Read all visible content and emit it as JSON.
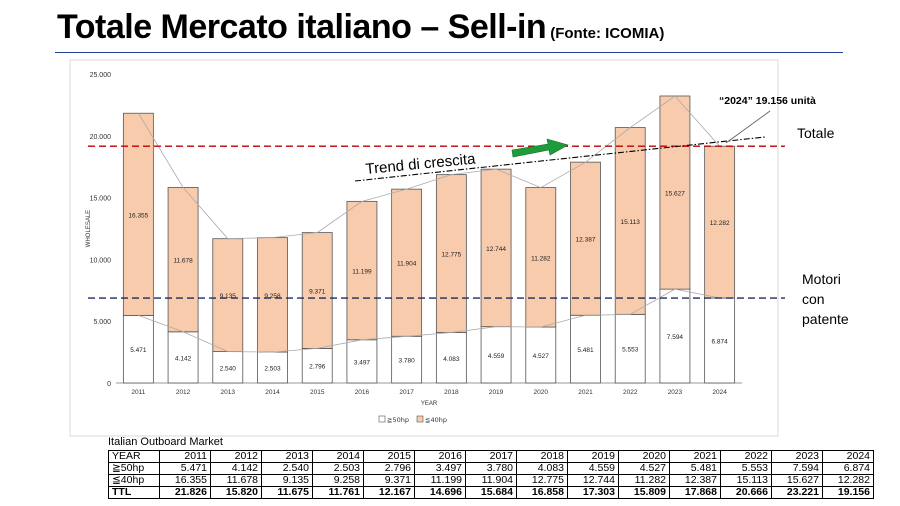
{
  "slide": {
    "title": "Totale Mercato italiano – Sell-in",
    "source": "(Fonte: ICOMIA)"
  },
  "chart_data": {
    "type": "bar",
    "stacked": true,
    "xlabel": "YEAR",
    "ylabel": "WHOLESALE",
    "ylim": [
      0,
      25000
    ],
    "yticks": [
      "0",
      "5.000",
      "10.000",
      "15.000",
      "20.000",
      "25.000"
    ],
    "ytick_values": [
      0,
      5000,
      10000,
      15000,
      20000,
      25000
    ],
    "grid": false,
    "categories": [
      "2011",
      "2012",
      "2013",
      "2014",
      "2015",
      "2016",
      "2017",
      "2018",
      "2019",
      "2020",
      "2021",
      "2022",
      "2023",
      "2024"
    ],
    "series": [
      {
        "name": "≧50hp",
        "color": "#ffffff",
        "values": [
          5471,
          4142,
          2540,
          2503,
          2796,
          3497,
          3780,
          4083,
          4559,
          4527,
          5481,
          5553,
          7594,
          6874
        ],
        "labels": [
          "5.471",
          "4.142",
          "2.540",
          "2.503",
          "2.796",
          "3.497",
          "3.780",
          "4.083",
          "4.559",
          "4.527",
          "5.481",
          "5.553",
          "7.594",
          "6.874"
        ]
      },
      {
        "name": "≦40hp",
        "color": "#f8cbad",
        "values": [
          16355,
          11678,
          9135,
          9258,
          9371,
          11199,
          11904,
          12775,
          12744,
          11282,
          12387,
          15113,
          15627,
          12282
        ],
        "labels": [
          "16.355",
          "11.678",
          "9.135",
          "9.258",
          "9.371",
          "11.199",
          "11.904",
          "12.775",
          "12.744",
          "11.282",
          "12.387",
          "15.113",
          "15.627",
          "12.282"
        ]
      }
    ],
    "legend_position": "bottom",
    "annotations": {
      "trend_label": "Trend di crescita",
      "total_label": "Totale",
      "licensed_label": [
        "Motori",
        "con",
        "patente"
      ],
      "note_2024": "“2024” 19.156 unità",
      "total_line_value": 19156,
      "licensed_line_value": 6874,
      "total_line_color": "#c00000",
      "licensed_line_color": "#1f2a5a",
      "arrow_color": "#1e9b3a"
    }
  },
  "table": {
    "caption": "Italian Outboard Market",
    "header": [
      "YEAR",
      "2011",
      "2012",
      "2013",
      "2014",
      "2015",
      "2016",
      "2017",
      "2018",
      "2019",
      "2020",
      "2021",
      "2022",
      "2023",
      "2024"
    ],
    "rows": [
      [
        "≧50hp",
        "5.471",
        "4.142",
        "2.540",
        "2.503",
        "2.796",
        "3.497",
        "3.780",
        "4.083",
        "4.559",
        "4.527",
        "5.481",
        "5.553",
        "7.594",
        "6.874"
      ],
      [
        "≦40hp",
        "16.355",
        "11.678",
        "9.135",
        "9.258",
        "9.371",
        "11.199",
        "11.904",
        "12.775",
        "12.744",
        "11.282",
        "12.387",
        "15.113",
        "15.627",
        "12.282"
      ],
      [
        "TTL",
        "21.826",
        "15.820",
        "11.675",
        "11.761",
        "12.167",
        "14.696",
        "15.684",
        "16.858",
        "17.303",
        "15.809",
        "17.868",
        "20.666",
        "23.221",
        "19.156"
      ]
    ]
  }
}
